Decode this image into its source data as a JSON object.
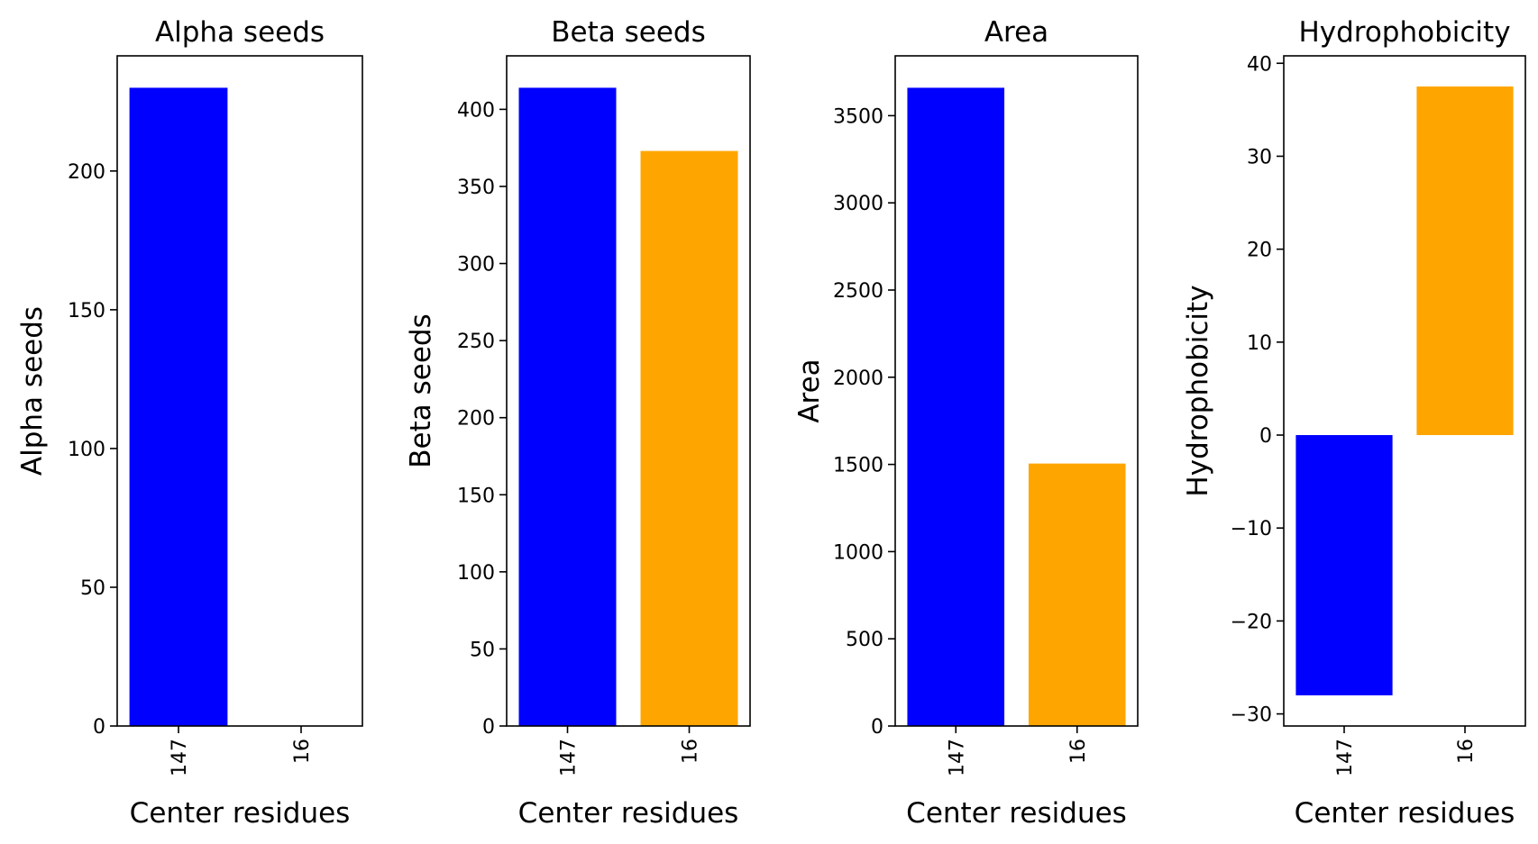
{
  "chart_data": [
    {
      "type": "bar",
      "title": "Alpha seeds",
      "xlabel": "Center residues",
      "ylabel": "Alpha seeds",
      "categories": [
        "147",
        "16"
      ],
      "values": [
        230,
        0
      ],
      "colors": [
        "#0000ff",
        "#ffa500"
      ],
      "ylim": [
        0,
        241.5
      ],
      "yticks": [
        0,
        50,
        100,
        150,
        200
      ],
      "grid": false
    },
    {
      "type": "bar",
      "title": "Beta seeds",
      "xlabel": "Center residues",
      "ylabel": "Beta seeds",
      "categories": [
        "147",
        "16"
      ],
      "values": [
        414,
        373
      ],
      "colors": [
        "#0000ff",
        "#ffa500"
      ],
      "ylim": [
        0,
        434.7
      ],
      "yticks": [
        0,
        50,
        100,
        150,
        200,
        250,
        300,
        350,
        400
      ],
      "grid": false
    },
    {
      "type": "bar",
      "title": "Area",
      "xlabel": "Center residues",
      "ylabel": "Area",
      "categories": [
        "147",
        "16"
      ],
      "values": [
        3660,
        1505
      ],
      "colors": [
        "#0000ff",
        "#ffa500"
      ],
      "ylim": [
        0,
        3843
      ],
      "yticks": [
        0,
        500,
        1000,
        1500,
        2000,
        2500,
        3000,
        3500
      ],
      "grid": false
    },
    {
      "type": "bar",
      "title": "Hydrophobicity",
      "xlabel": "Center residues",
      "ylabel": "Hydrophobicity",
      "categories": [
        "147",
        "16"
      ],
      "values": [
        -28,
        37.5
      ],
      "colors": [
        "#0000ff",
        "#ffa500"
      ],
      "ylim": [
        -31.3,
        40.8
      ],
      "yticks": [
        -30,
        -20,
        -10,
        0,
        10,
        20,
        30,
        40
      ],
      "grid": false
    }
  ]
}
